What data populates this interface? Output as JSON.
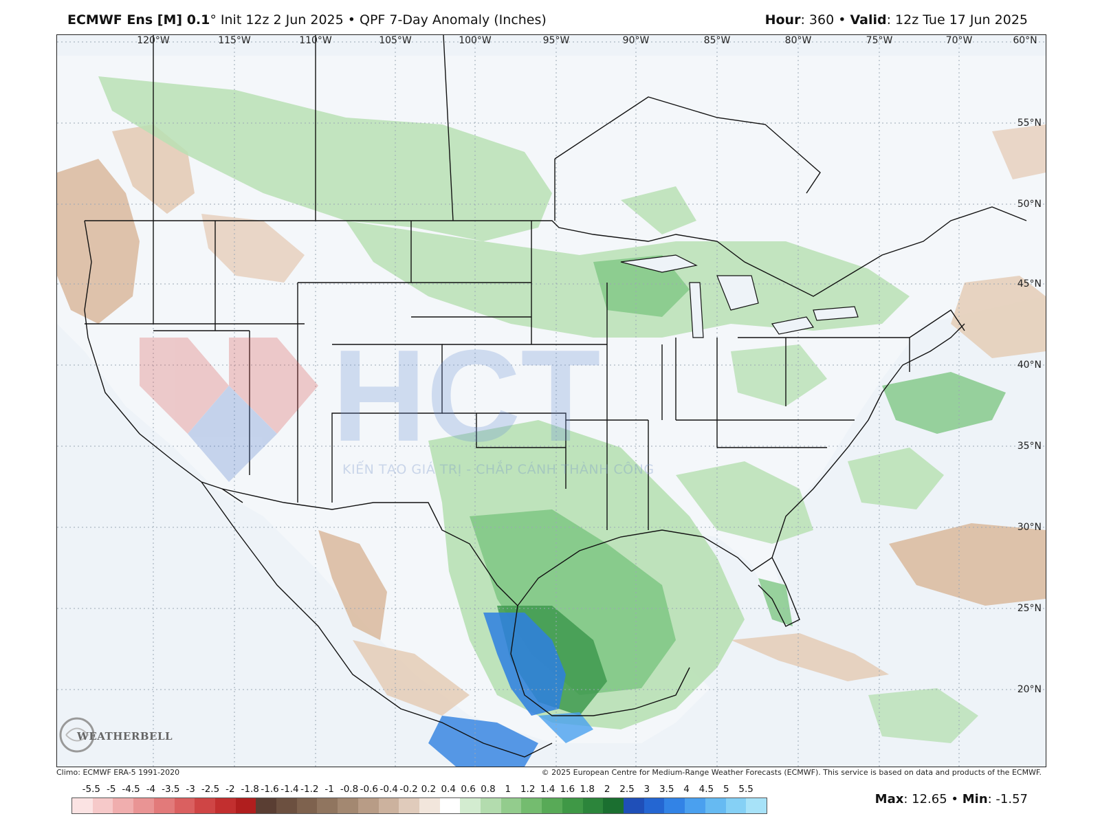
{
  "header": {
    "model": "ECMWF Ens [M] 0.1",
    "degree": "°",
    "init": " Init 12z 2 Jun 2025 • QPF 7-Day Anomaly (Inches)",
    "hour_label": "Hour",
    "hour_value": ": 360 • ",
    "valid_label": "Valid",
    "valid_value": ": 12z Tue 17 Jun 2025"
  },
  "map": {
    "lon_labels": [
      "120°W",
      "115°W",
      "110°W",
      "105°W",
      "100°W",
      "95°W",
      "90°W",
      "85°W",
      "80°W",
      "75°W",
      "70°W",
      "60°N"
    ],
    "lat_labels": [
      "55°N",
      "50°N",
      "45°N",
      "40°N",
      "35°N",
      "30°N",
      "25°N",
      "20°N"
    ],
    "watermark_logo_text": "HCT",
    "watermark_tagline": "KIẾN TẠO GIÁ TRỊ - CHẮP CÁNH THÀNH CÔNG",
    "provider_logo_text": "WEATHERBELL",
    "colors": {
      "ocean": "#eef3f8",
      "dry_tan": "#d9b89c",
      "dry_light": "#ead8c8",
      "wet_light": "#b8e0b4",
      "wet_mid": "#7fc784",
      "wet_dark": "#3f9a4f",
      "very_wet_blue": "#2e7fe0",
      "boundary": "#111111"
    }
  },
  "footer": {
    "climo": "Climo: ECMWF ERA-5 1991-2020",
    "copyright": "© 2025 European Centre for Medium-Range Weather Forecasts (ECMWF). This service is based on data and products of the ECMWF."
  },
  "legend": {
    "ticks": [
      "-5.5",
      "-5",
      "-4.5",
      "-4",
      "-3.5",
      "-3",
      "-2.5",
      "-2",
      "-1.8",
      "-1.6",
      "-1.4",
      "-1.2",
      "-1",
      "-0.8",
      "-0.6",
      "-0.4",
      "-0.2",
      "0.2",
      "0.4",
      "0.6",
      "0.8",
      "1",
      "1.2",
      "1.4",
      "1.6",
      "1.8",
      "2",
      "2.5",
      "3",
      "3.5",
      "4",
      "4.5",
      "5",
      "5.5"
    ],
    "colors": [
      "#fbe3e3",
      "#f6c9c9",
      "#f0aeae",
      "#e99494",
      "#e27a7a",
      "#da6060",
      "#cf4545",
      "#c22f2f",
      "#b01e1e",
      "#5a3e33",
      "#6c5040",
      "#7e624e",
      "#90755f",
      "#a38871",
      "#b89c86",
      "#ccb29e",
      "#e0cbbb",
      "#f2e6dc",
      "#ffffff",
      "#d3ecd0",
      "#b3dcae",
      "#93cc8d",
      "#74bc6f",
      "#58aa57",
      "#3f9846",
      "#2c853b",
      "#1b6f30",
      "#1f4fb8",
      "#2466d2",
      "#3283e6",
      "#4aa0ef",
      "#66baf2",
      "#85d0f5",
      "#a7e2f8"
    ],
    "max_label": "Max",
    "max_value": ": 12.65 • ",
    "min_label": "Min",
    "min_value": ": -1.57"
  }
}
